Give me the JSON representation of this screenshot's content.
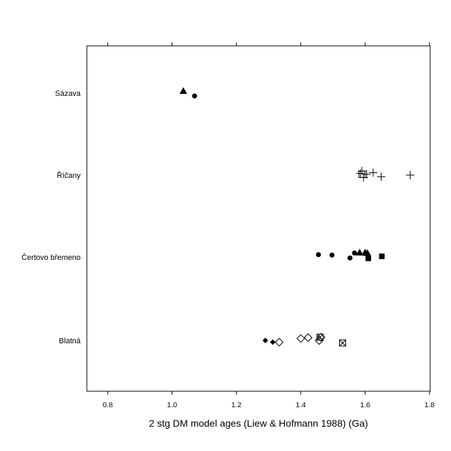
{
  "chart_data": {
    "type": "scatter",
    "title": "",
    "xlabel": "2 stg DM model ages (Liew & Hofmann 1988) (Ga)",
    "ylabel": "",
    "xlim": [
      0.74,
      1.81
    ],
    "xticks": [
      0.8,
      1.0,
      1.2,
      1.4,
      1.6,
      1.8
    ],
    "xtick_labels": [
      "0.8",
      "1.0",
      "1.2",
      "1.4",
      "1.6",
      "1.8"
    ],
    "grid": false,
    "legend": "none",
    "categories": [
      "Sázava",
      "Říčany",
      "Čertovo břemeno",
      "Blatná"
    ],
    "points": [
      {
        "category": "Sázava",
        "x": 1.035,
        "jitter": 0.05,
        "marker": "filled-triangle"
      },
      {
        "category": "Sázava",
        "x": 1.07,
        "jitter": -0.07,
        "marker": "filled-circle"
      },
      {
        "category": "Říčany",
        "x": 1.585,
        "jitter": 0.04,
        "marker": "plus"
      },
      {
        "category": "Říčany",
        "x": 1.59,
        "jitter": 0.1,
        "marker": "plus"
      },
      {
        "category": "Říčany",
        "x": 1.605,
        "jitter": 0.02,
        "marker": "plus"
      },
      {
        "category": "Říčany",
        "x": 1.625,
        "jitter": 0.06,
        "marker": "plus"
      },
      {
        "category": "Říčany",
        "x": 1.595,
        "jitter": -0.06,
        "marker": "plus"
      },
      {
        "category": "Říčany",
        "x": 1.65,
        "jitter": -0.04,
        "marker": "plus"
      },
      {
        "category": "Říčany",
        "x": 1.74,
        "jitter": 0.0,
        "marker": "plus"
      },
      {
        "category": "Říčany",
        "x": 1.59,
        "jitter": 0.02,
        "marker": "open-square"
      },
      {
        "category": "Čertovo břemeno",
        "x": 1.455,
        "jitter": 0.06,
        "marker": "filled-circle"
      },
      {
        "category": "Čertovo břemeno",
        "x": 1.497,
        "jitter": 0.05,
        "marker": "filled-circle"
      },
      {
        "category": "Čertovo břemeno",
        "x": 1.553,
        "jitter": -0.02,
        "marker": "filled-circle"
      },
      {
        "category": "Čertovo břemeno",
        "x": 1.567,
        "jitter": 0.1,
        "marker": "filled-circle"
      },
      {
        "category": "Čertovo břemeno",
        "x": 1.583,
        "jitter": 0.11,
        "marker": "filled-triangle"
      },
      {
        "category": "Čertovo břemeno",
        "x": 1.6,
        "jitter": 0.11,
        "marker": "filled-triangle"
      },
      {
        "category": "Čertovo břemeno",
        "x": 1.607,
        "jitter": 0.1,
        "marker": "filled-triangle"
      },
      {
        "category": "Čertovo břemeno",
        "x": 1.61,
        "jitter": -0.03,
        "marker": "filled-square"
      },
      {
        "category": "Čertovo břemeno",
        "x": 1.652,
        "jitter": 0.02,
        "marker": "filled-square"
      },
      {
        "category": "Blatná",
        "x": 1.29,
        "jitter": 0.0,
        "marker": "filled-diamond"
      },
      {
        "category": "Blatná",
        "x": 1.313,
        "jitter": -0.04,
        "marker": "filled-diamond"
      },
      {
        "category": "Blatná",
        "x": 1.333,
        "jitter": -0.04,
        "marker": "open-diamond"
      },
      {
        "category": "Blatná",
        "x": 1.4,
        "jitter": 0.05,
        "marker": "open-diamond"
      },
      {
        "category": "Blatná",
        "x": 1.423,
        "jitter": 0.07,
        "marker": "open-diamond"
      },
      {
        "category": "Blatná",
        "x": 1.457,
        "jitter": 0.0,
        "marker": "open-diamond"
      },
      {
        "category": "Blatná",
        "x": 1.46,
        "jitter": 0.08,
        "marker": "crossed-square"
      },
      {
        "category": "Blatná",
        "x": 1.463,
        "jitter": 0.08,
        "marker": "open-diamond"
      },
      {
        "category": "Blatná",
        "x": 1.53,
        "jitter": -0.06,
        "marker": "crossed-square"
      }
    ]
  }
}
